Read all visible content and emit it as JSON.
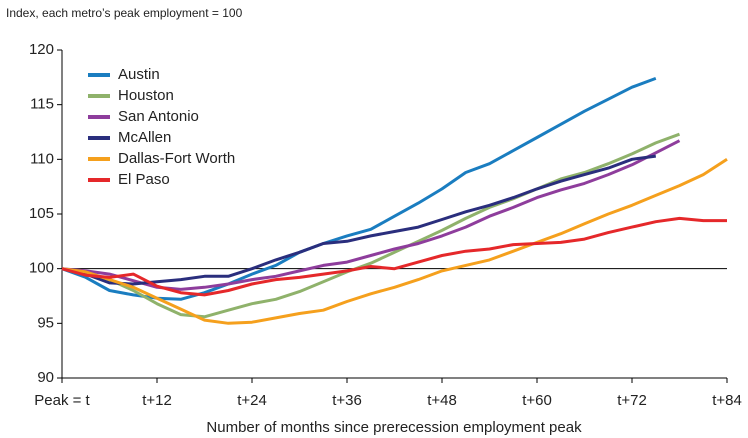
{
  "chart_data": {
    "type": "line",
    "subtitle": "Index, each metro’s peak employment = 100",
    "xlabel": "Number of months since prerecession employment peak",
    "x": [
      0,
      3,
      6,
      9,
      12,
      15,
      18,
      21,
      24,
      27,
      30,
      33,
      36,
      39,
      42,
      45,
      48,
      51,
      54,
      57,
      60,
      63,
      66,
      69,
      72,
      75,
      78,
      81,
      84
    ],
    "xlim": [
      0,
      84
    ],
    "xticks": [
      {
        "value": 0,
        "label": "Peak = t"
      },
      {
        "value": 12,
        "label": "t+12"
      },
      {
        "value": 24,
        "label": "t+24"
      },
      {
        "value": 36,
        "label": "t+36"
      },
      {
        "value": 48,
        "label": "t+48"
      },
      {
        "value": 60,
        "label": "t+60"
      },
      {
        "value": 72,
        "label": "t+72"
      },
      {
        "value": 84,
        "label": "t+84"
      }
    ],
    "ylim": [
      90,
      120
    ],
    "yticks": [
      90,
      95,
      100,
      105,
      110,
      115,
      120
    ],
    "reference_line": 100,
    "legend": "upper left",
    "series": [
      {
        "name": "Austin",
        "color": "#1a7dc0",
        "values": [
          100,
          99.2,
          98,
          97.6,
          97.3,
          97.2,
          97.8,
          98.6,
          99.5,
          100.3,
          101.5,
          102.3,
          103,
          103.6,
          104.8,
          106,
          107.3,
          108.8,
          109.6,
          110.8,
          112,
          113.2,
          114.4,
          115.5,
          116.6,
          117.4,
          null,
          null,
          null
        ]
      },
      {
        "name": "Houston",
        "color": "#8fb26b",
        "values": [
          100,
          99.6,
          99,
          98,
          96.8,
          95.8,
          95.6,
          96.2,
          96.8,
          97.2,
          97.9,
          98.8,
          99.7,
          100.5,
          101.5,
          102.5,
          103.5,
          104.6,
          105.6,
          106.4,
          107.3,
          108.2,
          108.8,
          109.6,
          110.5,
          111.5,
          112.3,
          null,
          null
        ]
      },
      {
        "name": "San Antonio",
        "color": "#8e3d9c",
        "values": [
          100,
          99.8,
          99.5,
          98.9,
          98.3,
          98.1,
          98.3,
          98.6,
          99,
          99.3,
          99.8,
          100.3,
          100.6,
          101.2,
          101.8,
          102.3,
          103,
          103.8,
          104.8,
          105.6,
          106.5,
          107.2,
          107.8,
          108.6,
          109.5,
          110.6,
          111.7,
          null,
          null
        ]
      },
      {
        "name": "McAllen",
        "color": "#2a2e7d",
        "values": [
          100,
          99.5,
          98.7,
          98.6,
          98.8,
          99,
          99.3,
          99.3,
          100,
          100.8,
          101.5,
          102.3,
          102.5,
          103,
          103.4,
          103.8,
          104.5,
          105.2,
          105.8,
          106.5,
          107.3,
          108,
          108.6,
          109.2,
          110,
          110.3,
          null,
          null,
          null
        ]
      },
      {
        "name": "Dallas-Fort Worth",
        "color": "#f5a01d",
        "values": [
          100,
          99.7,
          99,
          98.3,
          97.3,
          96.3,
          95.3,
          95,
          95.1,
          95.5,
          95.9,
          96.2,
          97,
          97.7,
          98.3,
          99,
          99.8,
          100.3,
          100.8,
          101.6,
          102.4,
          103.2,
          104.1,
          105,
          105.8,
          106.7,
          107.6,
          108.6,
          110
        ]
      },
      {
        "name": "El Paso",
        "color": "#e5282a",
        "values": [
          100,
          99.4,
          99.2,
          99.5,
          98.4,
          97.8,
          97.6,
          98,
          98.6,
          99,
          99.2,
          99.5,
          99.8,
          100.2,
          100,
          100.6,
          101.2,
          101.6,
          101.8,
          102.2,
          102.3,
          102.4,
          102.7,
          103.3,
          103.8,
          104.3,
          104.6,
          104.4,
          104.4
        ]
      }
    ]
  }
}
